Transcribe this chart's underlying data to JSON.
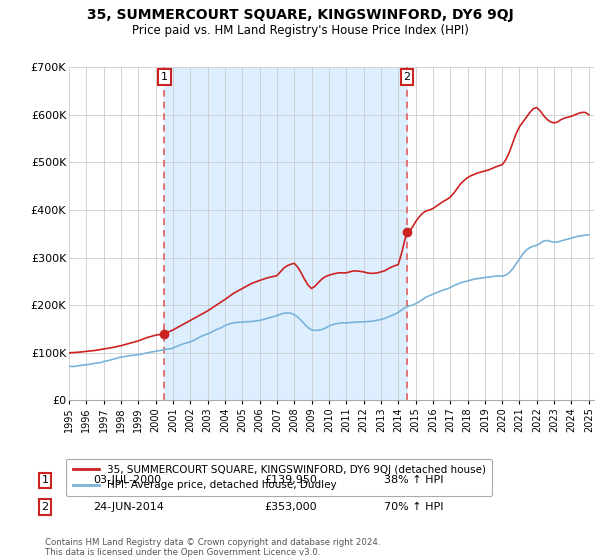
{
  "title": "35, SUMMERCOURT SQUARE, KINGSWINFORD, DY6 9QJ",
  "subtitle": "Price paid vs. HM Land Registry's House Price Index (HPI)",
  "ylim": [
    0,
    700000
  ],
  "yticks": [
    0,
    100000,
    200000,
    300000,
    400000,
    500000,
    600000,
    700000
  ],
  "ytick_labels": [
    "£0",
    "£100K",
    "£200K",
    "£300K",
    "£400K",
    "£500K",
    "£600K",
    "£700K"
  ],
  "hpi_color": "#7ab3d9",
  "price_color": "#cc2222",
  "vline_color": "#e06060",
  "shade_color": "#ddeeff",
  "annotation_box_color": "#cc2222",
  "background_color": "#ffffff",
  "grid_color": "#cccccc",
  "legend_label_price": "35, SUMMERCOURT SQUARE, KINGSWINFORD, DY6 9QJ (detached house)",
  "legend_label_hpi": "HPI: Average price, detached house, Dudley",
  "transaction_1": {
    "label": "1",
    "date": "03-JUL-2000",
    "price": "£139,950",
    "hpi": "38% ↑ HPI",
    "year": 2000.5,
    "price_val": 139950
  },
  "transaction_2": {
    "label": "2",
    "date": "24-JUN-2014",
    "price": "£353,000",
    "hpi": "70% ↑ HPI",
    "year": 2014.5,
    "price_val": 353000
  },
  "footer": "Contains HM Land Registry data © Crown copyright and database right 2024.\nThis data is licensed under the Open Government Licence v3.0.",
  "hpi_x": [
    1995.0,
    1995.1,
    1995.2,
    1995.3,
    1995.4,
    1995.5,
    1995.6,
    1995.7,
    1995.8,
    1995.9,
    1996.0,
    1996.1,
    1996.2,
    1996.3,
    1996.4,
    1996.5,
    1996.6,
    1996.7,
    1996.8,
    1996.9,
    1997.0,
    1997.2,
    1997.4,
    1997.6,
    1997.8,
    1998.0,
    1998.2,
    1998.4,
    1998.6,
    1998.8,
    1999.0,
    1999.2,
    1999.4,
    1999.6,
    1999.8,
    2000.0,
    2000.2,
    2000.4,
    2000.6,
    2000.8,
    2001.0,
    2001.2,
    2001.4,
    2001.6,
    2001.8,
    2002.0,
    2002.2,
    2002.4,
    2002.6,
    2002.8,
    2003.0,
    2003.2,
    2003.4,
    2003.6,
    2003.8,
    2004.0,
    2004.2,
    2004.4,
    2004.6,
    2004.8,
    2005.0,
    2005.2,
    2005.4,
    2005.6,
    2005.8,
    2006.0,
    2006.2,
    2006.4,
    2006.6,
    2006.8,
    2007.0,
    2007.2,
    2007.4,
    2007.6,
    2007.8,
    2008.0,
    2008.2,
    2008.4,
    2008.6,
    2008.8,
    2009.0,
    2009.2,
    2009.4,
    2009.6,
    2009.8,
    2010.0,
    2010.2,
    2010.4,
    2010.6,
    2010.8,
    2011.0,
    2011.2,
    2011.4,
    2011.6,
    2011.8,
    2012.0,
    2012.2,
    2012.4,
    2012.6,
    2012.8,
    2013.0,
    2013.2,
    2013.4,
    2013.6,
    2013.8,
    2014.0,
    2014.2,
    2014.4,
    2014.6,
    2014.8,
    2015.0,
    2015.2,
    2015.4,
    2015.6,
    2015.8,
    2016.0,
    2016.2,
    2016.4,
    2016.6,
    2016.8,
    2017.0,
    2017.2,
    2017.4,
    2017.6,
    2017.8,
    2018.0,
    2018.2,
    2018.4,
    2018.6,
    2018.8,
    2019.0,
    2019.2,
    2019.4,
    2019.6,
    2019.8,
    2020.0,
    2020.2,
    2020.4,
    2020.6,
    2020.8,
    2021.0,
    2021.2,
    2021.4,
    2021.6,
    2021.8,
    2022.0,
    2022.2,
    2022.4,
    2022.6,
    2022.8,
    2023.0,
    2023.2,
    2023.4,
    2023.6,
    2023.8,
    2024.0,
    2024.2,
    2024.4,
    2024.6,
    2024.8,
    2025.0
  ],
  "hpi_y": [
    72000,
    71500,
    71000,
    71500,
    72000,
    72500,
    73000,
    73500,
    74000,
    74500,
    75000,
    75500,
    76000,
    76800,
    77500,
    78000,
    78500,
    79000,
    79500,
    80000,
    82000,
    83000,
    85000,
    87000,
    89000,
    91000,
    92000,
    93500,
    94500,
    95000,
    96000,
    97500,
    99000,
    100500,
    102000,
    103000,
    104500,
    106000,
    107500,
    108000,
    110000,
    113000,
    116000,
    119000,
    121000,
    123000,
    126000,
    130000,
    134000,
    137000,
    140000,
    143000,
    147000,
    150000,
    153000,
    157000,
    160000,
    162000,
    163500,
    164000,
    164500,
    165000,
    165500,
    166000,
    167000,
    168000,
    170000,
    172000,
    174000,
    176000,
    178000,
    181000,
    183000,
    184000,
    183000,
    180000,
    175000,
    168000,
    160000,
    153000,
    148000,
    147000,
    147500,
    149000,
    152000,
    156000,
    159000,
    161000,
    162000,
    163000,
    163000,
    163500,
    164000,
    164500,
    165000,
    165000,
    165500,
    166000,
    167000,
    168500,
    170000,
    172000,
    175000,
    178000,
    181000,
    185000,
    190000,
    195000,
    198000,
    200000,
    203000,
    207000,
    212000,
    217000,
    220000,
    223000,
    226000,
    229000,
    232000,
    234000,
    237000,
    241000,
    244000,
    247000,
    249000,
    251000,
    253000,
    255000,
    256000,
    257000,
    258000,
    259000,
    260000,
    261000,
    261500,
    261000,
    263000,
    268000,
    276000,
    287000,
    297000,
    308000,
    316000,
    321000,
    324000,
    326000,
    330000,
    335000,
    336000,
    334000,
    332000,
    333000,
    335000,
    337000,
    339000,
    341000,
    343000,
    345000,
    346000,
    347000,
    348000
  ],
  "price_x": [
    1995.0,
    1995.5,
    1996.0,
    1996.5,
    1997.0,
    1997.5,
    1998.0,
    1998.5,
    1999.0,
    1999.5,
    2000.0,
    2000.5,
    2001.0,
    2001.5,
    2002.0,
    2002.5,
    2003.0,
    2003.5,
    2004.0,
    2004.5,
    2005.0,
    2005.5,
    2006.0,
    2006.5,
    2007.0,
    2007.2,
    2007.4,
    2007.6,
    2007.8,
    2008.0,
    2008.2,
    2008.4,
    2008.6,
    2008.8,
    2009.0,
    2009.2,
    2009.4,
    2009.6,
    2009.8,
    2010.0,
    2010.2,
    2010.4,
    2010.6,
    2010.8,
    2011.0,
    2011.2,
    2011.4,
    2011.6,
    2011.8,
    2012.0,
    2012.2,
    2012.4,
    2012.6,
    2012.8,
    2013.0,
    2013.2,
    2013.4,
    2013.6,
    2013.8,
    2014.0,
    2014.2,
    2014.4,
    2014.6,
    2014.8,
    2015.0,
    2015.2,
    2015.4,
    2015.6,
    2015.8,
    2016.0,
    2016.2,
    2016.4,
    2016.6,
    2016.8,
    2017.0,
    2017.2,
    2017.4,
    2017.6,
    2017.8,
    2018.0,
    2018.2,
    2018.4,
    2018.6,
    2018.8,
    2019.0,
    2019.2,
    2019.4,
    2019.6,
    2019.8,
    2020.0,
    2020.2,
    2020.4,
    2020.6,
    2020.8,
    2021.0,
    2021.2,
    2021.4,
    2021.6,
    2021.8,
    2022.0,
    2022.2,
    2022.4,
    2022.6,
    2022.8,
    2023.0,
    2023.2,
    2023.4,
    2023.6,
    2023.8,
    2024.0,
    2024.2,
    2024.4,
    2024.6,
    2024.8,
    2025.0
  ],
  "price_y": [
    100000,
    101000,
    103000,
    105000,
    108000,
    111000,
    115000,
    120000,
    125000,
    132000,
    137000,
    140000,
    148000,
    158000,
    168000,
    178000,
    188000,
    200000,
    212000,
    225000,
    235000,
    245000,
    252000,
    258000,
    262000,
    270000,
    278000,
    283000,
    286000,
    288000,
    280000,
    268000,
    254000,
    242000,
    235000,
    240000,
    248000,
    255000,
    260000,
    263000,
    265000,
    267000,
    268000,
    268000,
    268000,
    270000,
    272000,
    272000,
    271000,
    270000,
    268000,
    267000,
    267000,
    268000,
    270000,
    272000,
    276000,
    280000,
    283000,
    285000,
    310000,
    340000,
    353000,
    363000,
    375000,
    385000,
    393000,
    398000,
    400000,
    403000,
    408000,
    413000,
    418000,
    422000,
    427000,
    435000,
    445000,
    455000,
    462000,
    468000,
    472000,
    475000,
    478000,
    480000,
    482000,
    484000,
    487000,
    490000,
    493000,
    495000,
    505000,
    520000,
    540000,
    560000,
    575000,
    585000,
    595000,
    605000,
    613000,
    615000,
    608000,
    598000,
    590000,
    585000,
    583000,
    585000,
    590000,
    593000,
    595000,
    597000,
    600000,
    603000,
    605000,
    605000,
    600000
  ]
}
